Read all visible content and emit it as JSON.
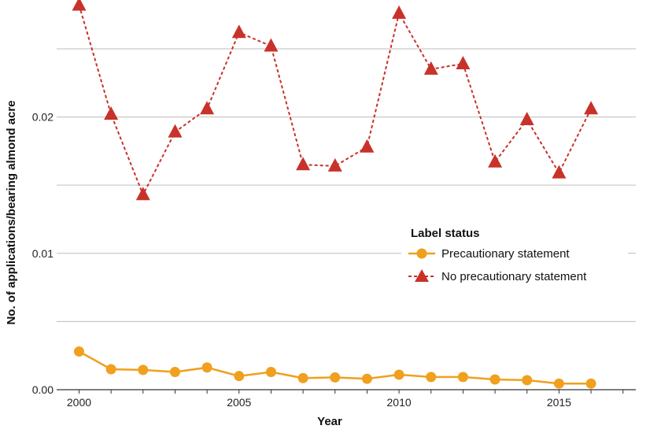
{
  "chart_data": {
    "type": "line",
    "title": "",
    "xlabel": "Year",
    "ylabel": "No. of applications/bearing almond acre",
    "xlim": [
      1999.3,
      2017.4
    ],
    "ylim": [
      0,
      0.028
    ],
    "x_ticks": [
      2000,
      2005,
      2010,
      2015
    ],
    "x_tick_labels": [
      "2000",
      "2005",
      "2010",
      "2015"
    ],
    "y_ticks": [
      0,
      0.01,
      0.02
    ],
    "y_tick_labels": [
      "0.00",
      "0.01",
      "0.02"
    ],
    "grid": "horizontal",
    "legend": {
      "title": "Label status",
      "placement": "center-right"
    },
    "x": [
      2000,
      2001,
      2002,
      2003,
      2004,
      2005,
      2006,
      2007,
      2008,
      2009,
      2010,
      2011,
      2012,
      2013,
      2014,
      2015,
      2016
    ],
    "series": [
      {
        "name": "Precautionary statement",
        "color": "#f0a01e",
        "marker": "circle",
        "line": "solid",
        "values": [
          0.0028,
          0.0015,
          0.00145,
          0.0013,
          0.00163,
          0.001,
          0.0013,
          0.00085,
          0.0009,
          0.0008,
          0.0011,
          0.00093,
          0.00093,
          0.00075,
          0.0007,
          0.00045,
          0.00045
        ]
      },
      {
        "name": "No precautionary statement",
        "color": "#c8322a",
        "marker": "triangle",
        "line": "dashed",
        "values": [
          0.0282,
          0.0202,
          0.0143,
          0.0189,
          0.0206,
          0.0262,
          0.0252,
          0.0165,
          0.0164,
          0.0178,
          0.0276,
          0.0235,
          0.0239,
          0.0167,
          0.0198,
          0.0159,
          0.0206
        ]
      }
    ]
  }
}
